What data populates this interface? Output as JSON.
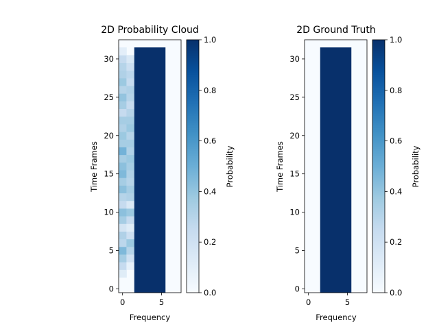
{
  "chart_data": [
    {
      "type": "heatmap",
      "title": "2D Probability Cloud",
      "xlabel": "Frequency",
      "ylabel": "Time Frames",
      "xlim": [
        -0.5,
        7.5
      ],
      "ylim": [
        -0.5,
        32.5
      ],
      "xticks": [
        0,
        5
      ],
      "yticks": [
        0,
        5,
        10,
        15,
        20,
        25,
        30
      ],
      "x_tick_labels": [
        "0",
        "5"
      ],
      "y_tick_labels": [
        "0",
        "5",
        "10",
        "15",
        "20",
        "25",
        "30"
      ],
      "colormap": "Blues",
      "colorbar": {
        "label": "Probability",
        "range": [
          0,
          1
        ],
        "ticks": [
          0.0,
          0.2,
          0.4,
          0.6,
          0.8,
          1.0
        ],
        "tick_labels": [
          "0.0",
          "0.2",
          "0.4",
          "0.6",
          "0.8",
          "1.0"
        ]
      },
      "block": {
        "x_range": [
          2,
          5
        ],
        "y_range": [
          0,
          31
        ],
        "value": 1.0
      },
      "column0": [
        0.0,
        0.0,
        0.12,
        0.25,
        0.35,
        0.45,
        0.28,
        0.32,
        0.18,
        0.35,
        0.42,
        0.25,
        0.3,
        0.42,
        0.35,
        0.45,
        0.42,
        0.35,
        0.48,
        0.35,
        0.38,
        0.32,
        0.35,
        0.25,
        0.35,
        0.4,
        0.3,
        0.38,
        0.32,
        0.3,
        0.25,
        0.1,
        0.0
      ],
      "column1": [
        0.0,
        0.0,
        0.0,
        0.08,
        0.2,
        0.3,
        0.38,
        0.22,
        0.12,
        0.25,
        0.38,
        0.15,
        0.32,
        0.35,
        0.3,
        0.32,
        0.35,
        0.38,
        0.32,
        0.35,
        0.3,
        0.38,
        0.35,
        0.3,
        0.25,
        0.3,
        0.32,
        0.25,
        0.28,
        0.22,
        0.15,
        0.0,
        0.0
      ]
    },
    {
      "type": "heatmap",
      "title": "2D Ground Truth",
      "xlabel": "Frequency",
      "ylabel": "Time Frames",
      "xlim": [
        -0.5,
        7.5
      ],
      "ylim": [
        -0.5,
        32.5
      ],
      "xticks": [
        0,
        5
      ],
      "yticks": [
        0,
        5,
        10,
        15,
        20,
        25,
        30
      ],
      "x_tick_labels": [
        "0",
        "5"
      ],
      "y_tick_labels": [
        "0",
        "5",
        "10",
        "15",
        "20",
        "25",
        "30"
      ],
      "colormap": "Blues",
      "colorbar": {
        "label": "Probability",
        "range": [
          0,
          1
        ],
        "ticks": [
          0.0,
          0.2,
          0.4,
          0.6,
          0.8,
          1.0
        ],
        "tick_labels": [
          "0.0",
          "0.2",
          "0.4",
          "0.6",
          "0.8",
          "1.0"
        ]
      },
      "block": {
        "x_range": [
          2,
          5
        ],
        "y_range": [
          0,
          31
        ],
        "value": 1.0
      },
      "column0": [],
      "column1": []
    }
  ]
}
